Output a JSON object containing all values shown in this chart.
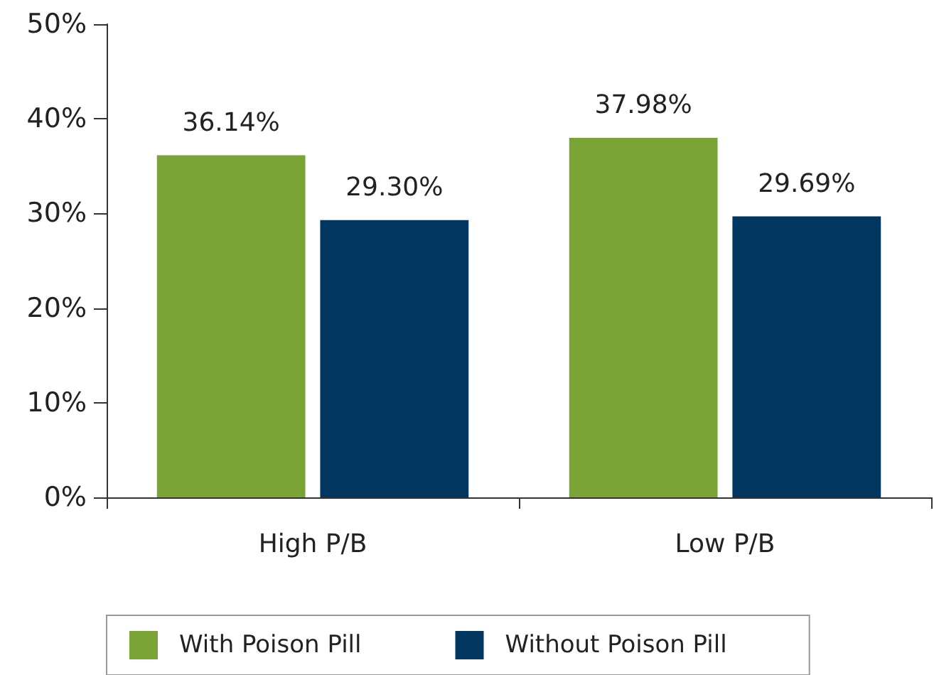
{
  "chart_data": {
    "type": "bar",
    "categories": [
      "High P/B",
      "Low P/B"
    ],
    "series": [
      {
        "name": "With Poison Pill",
        "color": "#7aa536",
        "values": [
          36.14,
          37.98
        ],
        "value_labels": [
          "36.14%",
          "37.98%"
        ]
      },
      {
        "name": "Without Poison Pill",
        "color": "#003660",
        "values": [
          29.3,
          29.69
        ],
        "value_labels": [
          "29.30%",
          "29.69%"
        ]
      }
    ],
    "ylim": [
      0,
      50
    ],
    "yticks": [
      {
        "value": 0,
        "label": "0%"
      },
      {
        "value": 10,
        "label": "10%"
      },
      {
        "value": 20,
        "label": "20%"
      },
      {
        "value": 30,
        "label": "30%"
      },
      {
        "value": 40,
        "label": "40%"
      },
      {
        "value": 50,
        "label": "50%"
      }
    ],
    "grid": false,
    "legend": "bottom"
  }
}
